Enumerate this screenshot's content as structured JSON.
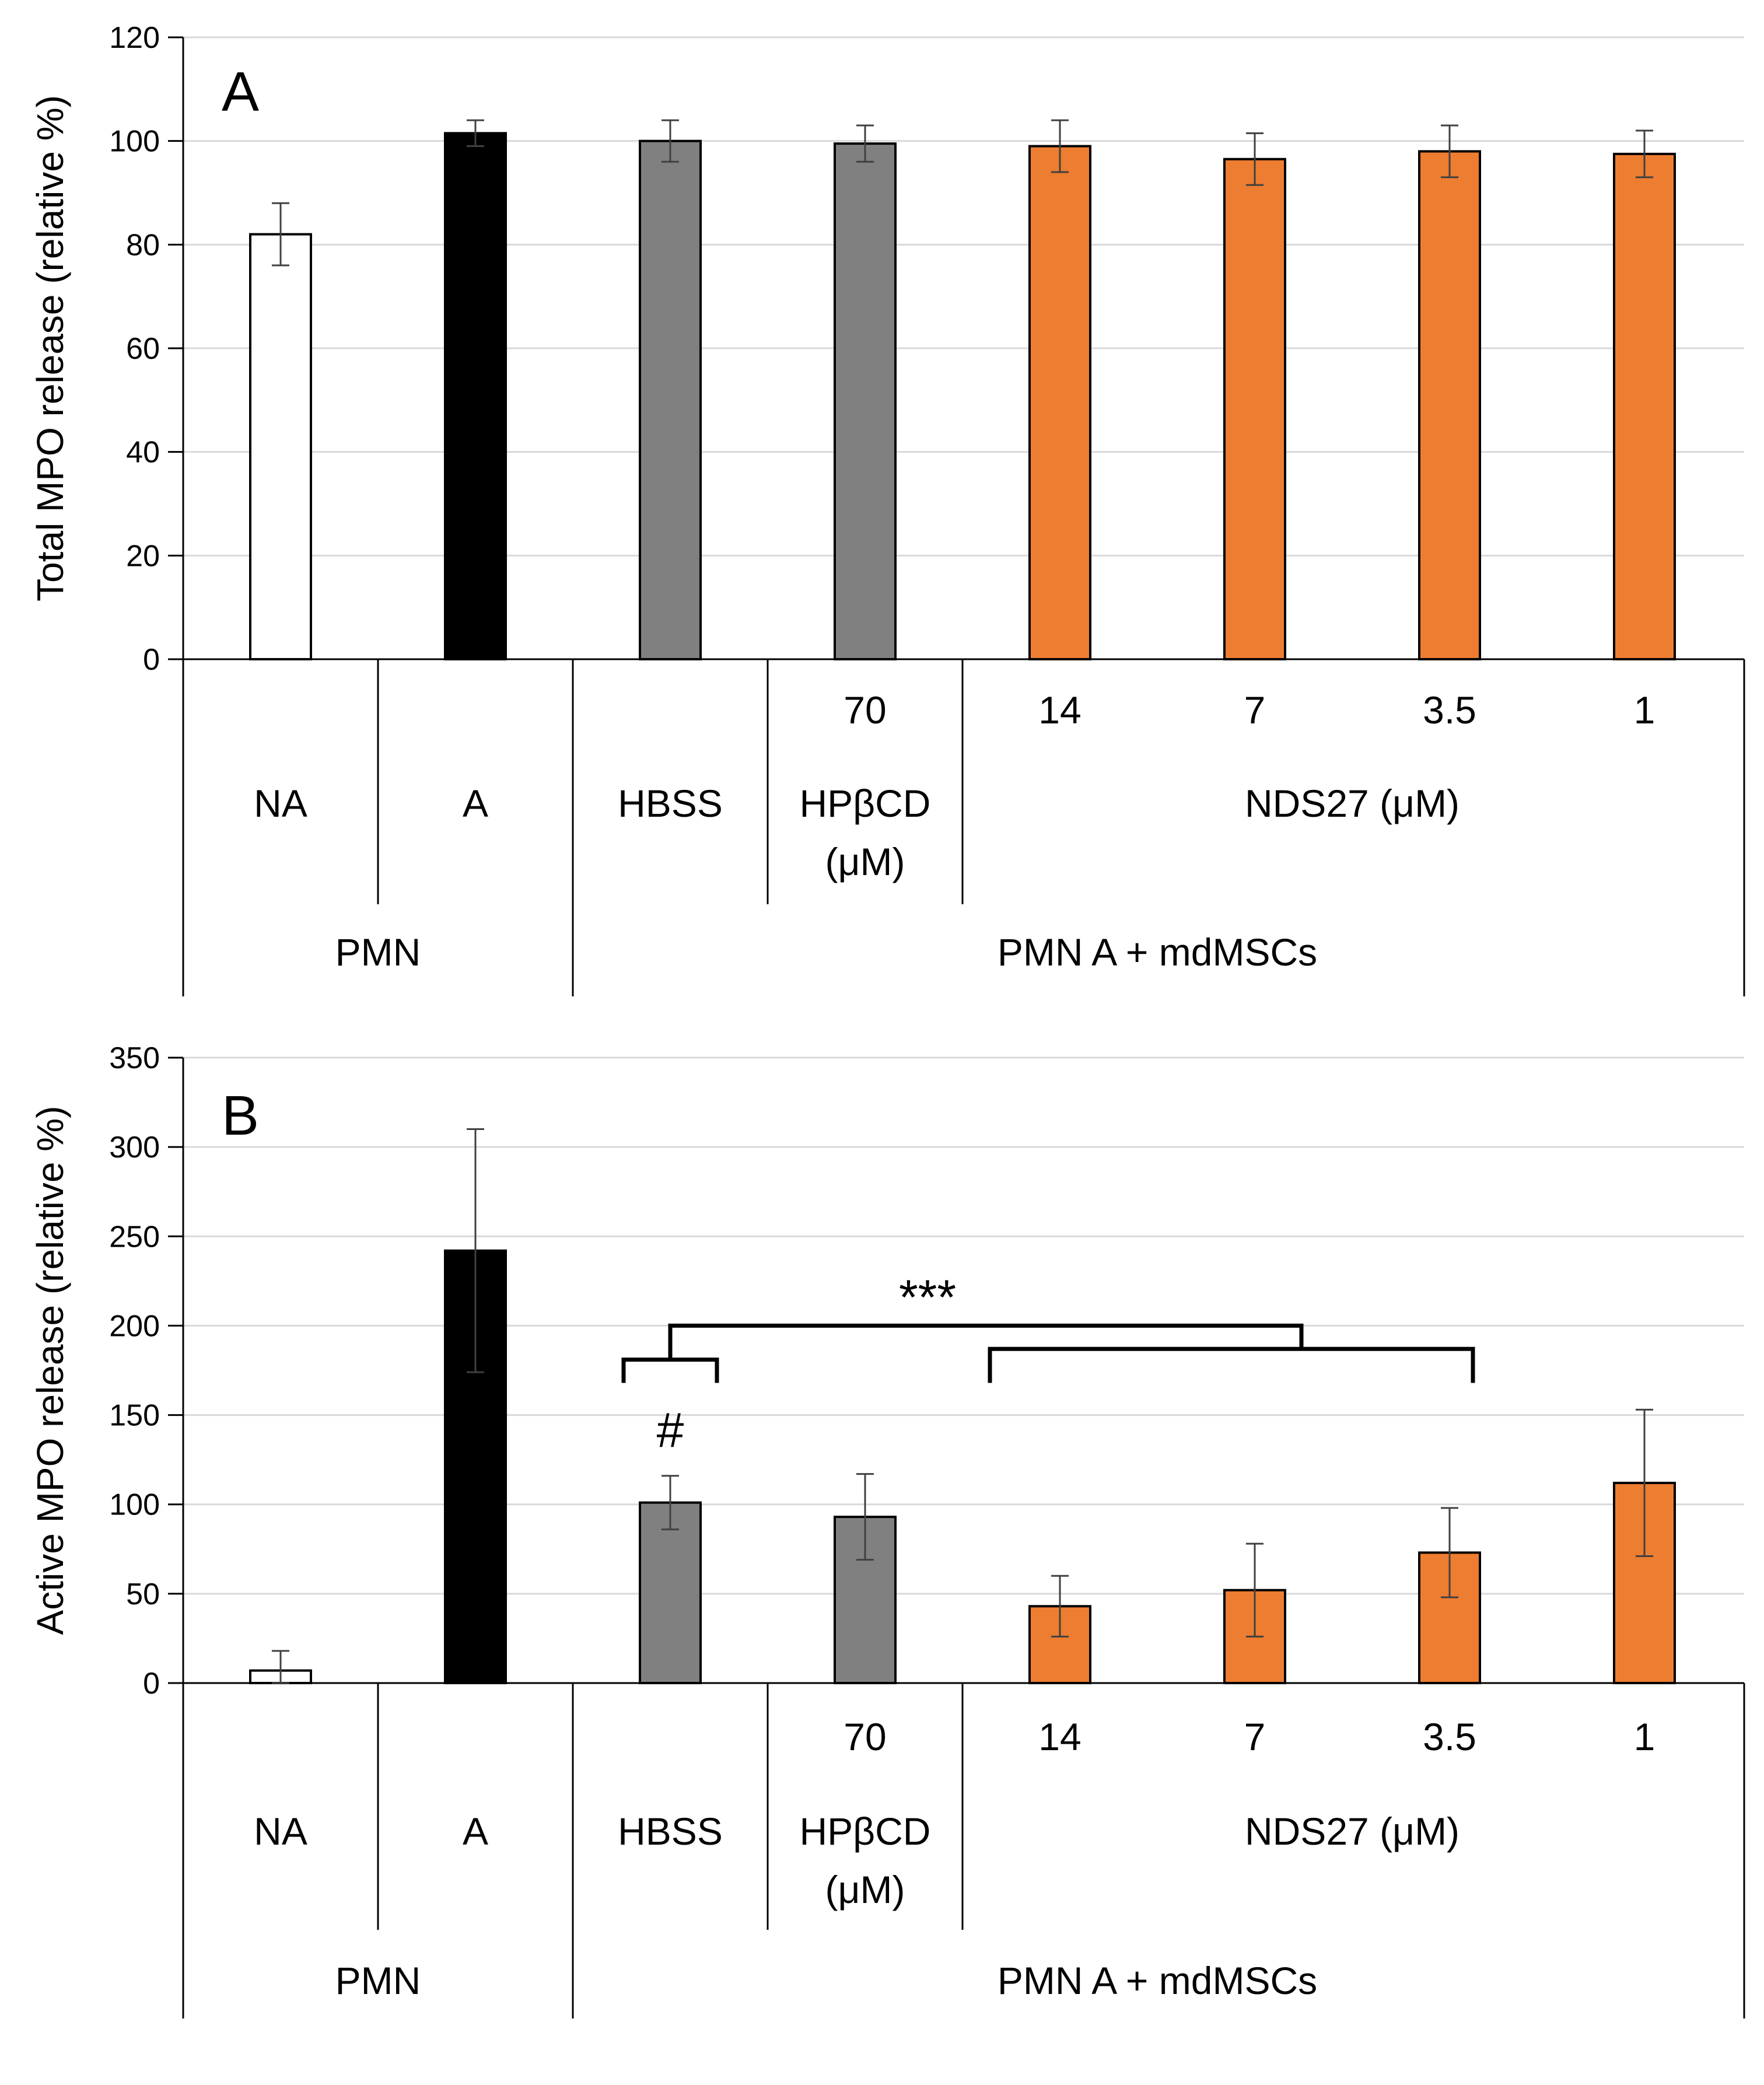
{
  "chart_data": [
    {
      "type": "bar",
      "panel_label": "A",
      "ylabel": "Total MPO release (relative %)",
      "ylim": [
        0,
        120
      ],
      "yticks": [
        0,
        20,
        40,
        60,
        80,
        100,
        120
      ],
      "grid": true,
      "categories": [
        "NA",
        "A",
        "HBSS",
        "70",
        "14",
        "7",
        "3.5",
        "1"
      ],
      "values": [
        82,
        101.5,
        100,
        99.5,
        99,
        96.5,
        98,
        97.5
      ],
      "errors": [
        6,
        2.5,
        4,
        3.5,
        5,
        5,
        5,
        4.5
      ],
      "bar_colors": [
        "#ffffff",
        "#000000",
        "#808080",
        "#808080",
        "#ed7d31",
        "#ed7d31",
        "#ed7d31",
        "#ed7d31"
      ],
      "x_groups": {
        "row1": [
          "",
          "",
          "",
          "70",
          "14",
          "7",
          "3.5",
          "1"
        ],
        "row2": [
          {
            "label": "NA",
            "span": [
              0,
              0
            ]
          },
          {
            "label": "A",
            "span": [
              1,
              1
            ]
          },
          {
            "label": "HBSS",
            "span": [
              2,
              2
            ]
          },
          {
            "label": "HPβCD",
            "label2": "(μM)",
            "span": [
              3,
              3
            ]
          },
          {
            "label": "NDS27 (μM)",
            "span": [
              4,
              7
            ]
          }
        ],
        "row3": [
          {
            "label": "PMN",
            "span": [
              0,
              1
            ]
          },
          {
            "label": "PMN A + mdMSCs",
            "span": [
              2,
              7
            ]
          }
        ]
      }
    },
    {
      "type": "bar",
      "panel_label": "B",
      "ylabel": "Active MPO release (relative %)",
      "ylim": [
        0,
        350
      ],
      "yticks": [
        0,
        50,
        100,
        150,
        200,
        250,
        300,
        350
      ],
      "grid": true,
      "categories": [
        "NA",
        "A",
        "HBSS",
        "70",
        "14",
        "7",
        "3.5",
        "1"
      ],
      "values": [
        7,
        242,
        101,
        93,
        43,
        52,
        73,
        112
      ],
      "errors": [
        11,
        68,
        15,
        24,
        17,
        26,
        25,
        41
      ],
      "bar_colors": [
        "#ffffff",
        "#000000",
        "#808080",
        "#808080",
        "#ed7d31",
        "#ed7d31",
        "#ed7d31",
        "#ed7d31"
      ],
      "annotations": {
        "significance": "***",
        "hash": "#"
      },
      "x_groups": {
        "row1": [
          "",
          "",
          "",
          "70",
          "14",
          "7",
          "3.5",
          "1"
        ],
        "row2": [
          {
            "label": "NA",
            "span": [
              0,
              0
            ]
          },
          {
            "label": "A",
            "span": [
              1,
              1
            ]
          },
          {
            "label": "HBSS",
            "span": [
              2,
              2
            ]
          },
          {
            "label": "HPβCD",
            "label2": "(μM)",
            "span": [
              3,
              3
            ]
          },
          {
            "label": "NDS27 (μM)",
            "span": [
              4,
              7
            ]
          }
        ],
        "row3": [
          {
            "label": "PMN",
            "span": [
              0,
              1
            ]
          },
          {
            "label": "PMN A + mdMSCs",
            "span": [
              2,
              7
            ]
          }
        ]
      }
    }
  ]
}
